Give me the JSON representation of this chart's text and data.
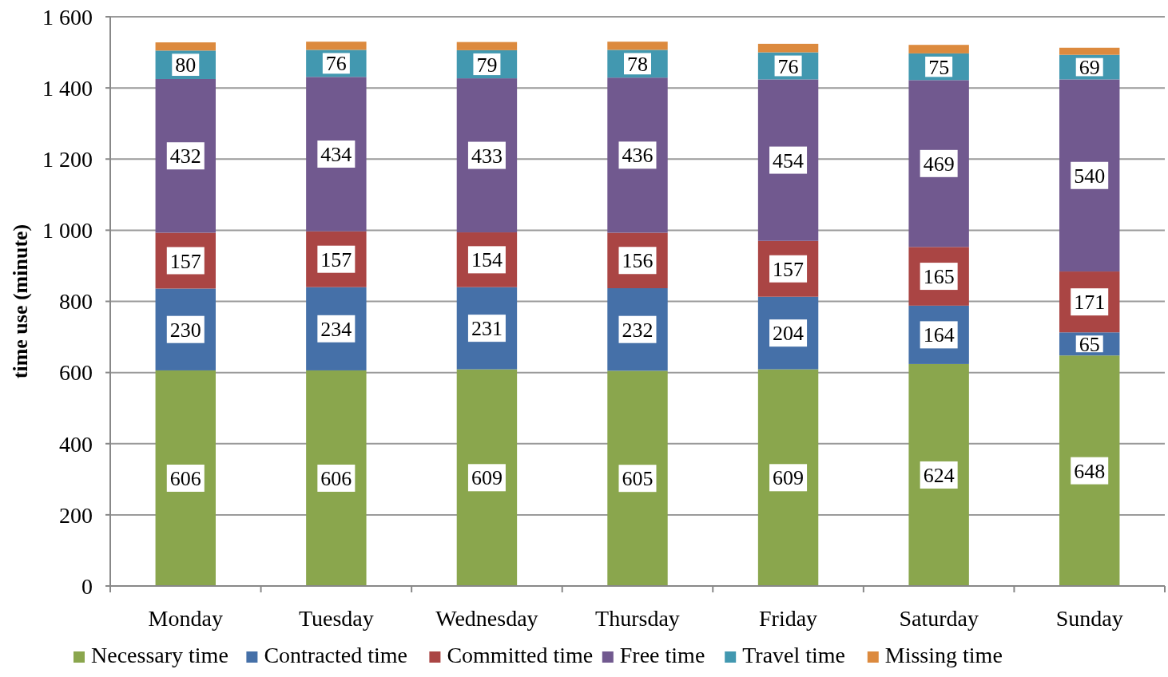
{
  "chart_data": {
    "type": "bar",
    "stacked": true,
    "ylabel": "time use (minute)",
    "categories": [
      "Monday",
      "Tuesday",
      "Wednesday",
      "Thursday",
      "Friday",
      "Saturday",
      "Sunday"
    ],
    "ylim": [
      0,
      1600
    ],
    "yticks": [
      0,
      200,
      400,
      600,
      800,
      {
        "value": 1000,
        "label": "1 000"
      },
      {
        "value": 1200,
        "label": "1 200"
      },
      {
        "value": 1400,
        "label": "1 400"
      },
      {
        "value": 1600,
        "label": "1 600"
      }
    ],
    "grid": "y",
    "legend": "bottom",
    "series": [
      {
        "name": "Necessary time",
        "color": "#8aa64d",
        "values": [
          606,
          606,
          609,
          605,
          609,
          624,
          648
        ],
        "value_labels": [
          "606",
          "606",
          "609",
          "605",
          "609",
          "624",
          "648"
        ]
      },
      {
        "name": "Contracted time",
        "color": "#4570a8",
        "values": [
          230,
          234,
          231,
          232,
          204,
          164,
          65
        ],
        "value_labels": [
          "230",
          "234",
          "231",
          "232",
          "204",
          "164",
          "65"
        ]
      },
      {
        "name": "Committed time",
        "color": "#aa4544",
        "values": [
          157,
          157,
          154,
          156,
          157,
          165,
          171
        ],
        "value_labels": [
          "157",
          "157",
          "154",
          "156",
          "157",
          "165",
          "171"
        ]
      },
      {
        "name": "Free time",
        "color": "#71598f",
        "values": [
          432,
          434,
          433,
          436,
          454,
          469,
          540
        ],
        "value_labels": [
          "432",
          "434",
          "433",
          "436",
          "454",
          "469",
          "540"
        ]
      },
      {
        "name": "Travel time",
        "color": "#4298b0",
        "values": [
          80,
          76,
          79,
          78,
          76,
          75,
          69
        ],
        "value_labels": [
          "80",
          "76",
          "79",
          "78",
          "76",
          "75",
          "69"
        ]
      },
      {
        "name": "Missing time",
        "color": "#dc8a3e",
        "values": [
          23,
          23,
          23,
          23,
          24,
          24,
          20
        ],
        "value_labels": [
          null,
          null,
          null,
          null,
          null,
          null,
          null
        ]
      }
    ]
  }
}
